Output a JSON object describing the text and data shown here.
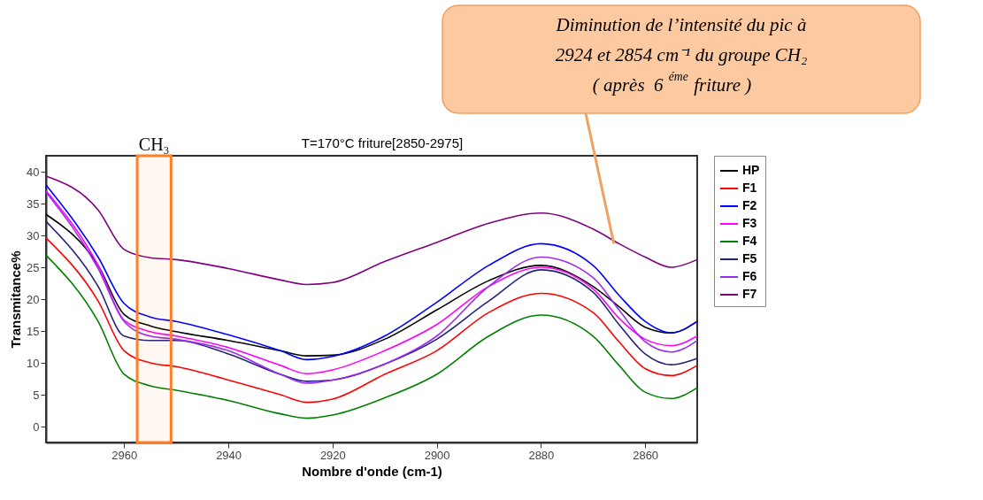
{
  "chart_data": {
    "type": "line",
    "title": "T=170°C friture[2850-2975]",
    "xlabel": "Nombre d'onde (cm-1)",
    "ylabel": "Transmitance%",
    "x": [
      2975,
      2965,
      2960,
      2955,
      2950,
      2940,
      2930,
      2925,
      2920,
      2910,
      2900,
      2890,
      2880,
      2870,
      2865,
      2860,
      2855,
      2850
    ],
    "series": [
      {
        "name": "HP",
        "color": "#000000",
        "values": [
          33.3,
          25.3,
          17.6,
          15.8,
          14.9,
          13.5,
          11.9,
          11.1,
          11.2,
          13.7,
          18.3,
          22.9,
          25.3,
          22.0,
          18.8,
          15.6,
          14.7,
          16.5
        ]
      },
      {
        "name": "F1",
        "color": "#ff0000",
        "values": [
          29.6,
          19.7,
          11.9,
          10.0,
          9.4,
          7.3,
          5.0,
          3.8,
          4.3,
          8.2,
          11.9,
          17.9,
          20.9,
          17.9,
          13.3,
          9.1,
          8.0,
          9.6
        ]
      },
      {
        "name": "F2",
        "color": "#0000ff",
        "values": [
          37.9,
          26.6,
          19.3,
          17.2,
          16.5,
          14.4,
          11.9,
          10.5,
          11.0,
          14.2,
          19.5,
          25.3,
          28.7,
          25.3,
          20.6,
          16.5,
          14.7,
          16.5
        ]
      },
      {
        "name": "F3",
        "color": "#ff00ff",
        "values": [
          37.0,
          25.3,
          16.7,
          14.9,
          14.2,
          12.4,
          9.6,
          8.3,
          8.9,
          11.9,
          16.0,
          22.0,
          25.0,
          21.6,
          17.0,
          13.7,
          12.7,
          14.2
        ]
      },
      {
        "name": "F4",
        "color": "#008000",
        "values": [
          26.9,
          16.5,
          8.2,
          6.4,
          5.7,
          4.1,
          2.0,
          1.3,
          1.8,
          4.5,
          8.2,
          14.2,
          17.5,
          14.2,
          9.6,
          5.4,
          4.4,
          6.1
        ]
      },
      {
        "name": "F5",
        "color": "#22227a",
        "values": [
          32.2,
          22.0,
          14.2,
          13.5,
          13.5,
          11.4,
          8.2,
          7.1,
          7.3,
          9.8,
          13.7,
          19.7,
          24.6,
          21.1,
          16.0,
          11.4,
          9.7,
          10.7
        ]
      },
      {
        "name": "F6",
        "color": "#9a2cf0",
        "values": [
          36.8,
          24.8,
          16.5,
          14.2,
          13.7,
          11.9,
          8.2,
          6.8,
          7.3,
          9.8,
          14.2,
          22.0,
          26.6,
          23.4,
          18.3,
          13.3,
          11.7,
          13.5
        ]
      },
      {
        "name": "F7",
        "color": "#800080",
        "values": [
          39.3,
          34.0,
          27.8,
          26.5,
          26.2,
          24.8,
          23.0,
          22.3,
          22.6,
          25.9,
          28.9,
          31.9,
          33.5,
          31.0,
          28.7,
          26.6,
          25.0,
          26.2
        ]
      }
    ],
    "xlim": [
      2975,
      2850
    ],
    "xticks": [
      2960,
      2940,
      2920,
      2900,
      2880,
      2860
    ],
    "ylim": [
      -2.5,
      42.5
    ],
    "yticks": [
      0,
      5,
      10,
      15,
      20,
      25,
      30,
      35,
      40
    ],
    "bands": [
      {
        "axis": "x",
        "from": 2957.5,
        "to": 2951,
        "label": "CH₃",
        "color": "#ff7f27"
      }
    ],
    "annotations": [
      {
        "text": "Diminution de l’intensité du pic à\n2924 et 2854  cm⁻¹ du groupe  CH₂\n( après  6$^{éme}$ friture )",
        "x": 2866,
        "y": 28.7
      }
    ],
    "grid": false,
    "legend": "right",
    "line_style": "solid",
    "marker": "none"
  }
}
